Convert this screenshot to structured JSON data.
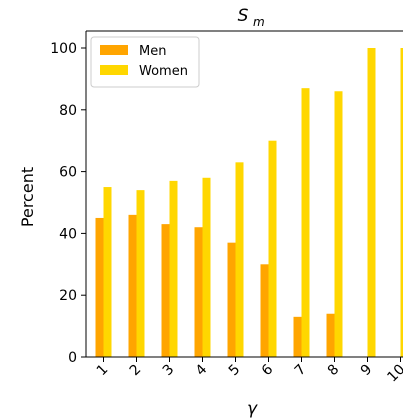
{
  "chart_data": {
    "type": "bar",
    "title": "S",
    "title_subscript": "m",
    "xlabel": "γ",
    "ylabel": "Percent",
    "ylim": [
      0,
      100
    ],
    "yticks": [
      0,
      20,
      40,
      60,
      80,
      100
    ],
    "categories": [
      "1",
      "2",
      "3",
      "4",
      "5",
      "6",
      "7",
      "8",
      "9",
      "10"
    ],
    "series": [
      {
        "name": "Men",
        "color": "#FFA500",
        "values": [
          45,
          46,
          43,
          42,
          37,
          30,
          13,
          14,
          0,
          0
        ]
      },
      {
        "name": "Women",
        "color": "#FFD700",
        "values": [
          55,
          54,
          57,
          58,
          63,
          70,
          87,
          86,
          100,
          100
        ]
      }
    ],
    "legend_position": "top-left",
    "grid": false
  }
}
